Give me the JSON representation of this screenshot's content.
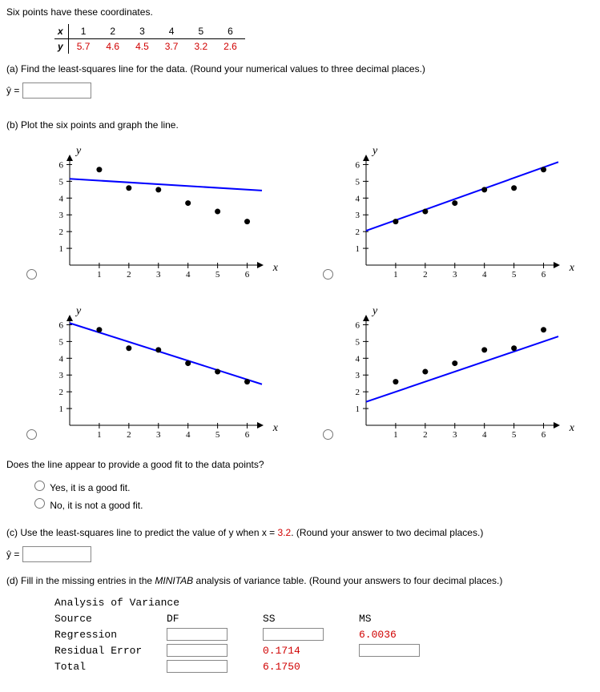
{
  "intro": "Six points have these coordinates.",
  "table": {
    "x_label": "x",
    "y_label": "y",
    "x": [
      "1",
      "2",
      "3",
      "4",
      "5",
      "6"
    ],
    "y": [
      "5.7",
      "4.6",
      "4.5",
      "3.7",
      "3.2",
      "2.6"
    ]
  },
  "partA": {
    "prompt": "(a) Find the least-squares line for the data. (Round your numerical values to three decimal places.)",
    "yhat": "ŷ ="
  },
  "partB": {
    "prompt": "(b) Plot the six points and graph the line.",
    "axis_y": "y",
    "axis_x": "x",
    "xlim": [
      0,
      6.5
    ],
    "ylim": [
      0,
      6.5
    ],
    "xticks": [
      1,
      2,
      3,
      4,
      5,
      6
    ],
    "yticks": [
      1,
      2,
      3,
      4,
      5,
      6
    ],
    "point_color": "#000000",
    "line_color": "#0000ff",
    "line_width": 2,
    "point_radius": 3.5,
    "charts": [
      {
        "points": [
          [
            1,
            5.7
          ],
          [
            2,
            4.6
          ],
          [
            3,
            4.5
          ],
          [
            4,
            3.7
          ],
          [
            5,
            3.2
          ],
          [
            6,
            2.6
          ]
        ],
        "line": [
          [
            0,
            5.15
          ],
          [
            6.5,
            4.45
          ]
        ]
      },
      {
        "points": [
          [
            1,
            2.6
          ],
          [
            2,
            3.2
          ],
          [
            3,
            3.7
          ],
          [
            4,
            4.5
          ],
          [
            5,
            4.6
          ],
          [
            6,
            5.7
          ]
        ],
        "line": [
          [
            0,
            2.05
          ],
          [
            6.5,
            6.15
          ]
        ]
      },
      {
        "points": [
          [
            1,
            5.7
          ],
          [
            2,
            4.6
          ],
          [
            3,
            4.5
          ],
          [
            4,
            3.7
          ],
          [
            5,
            3.2
          ],
          [
            6,
            2.6
          ]
        ],
        "line": [
          [
            0,
            6.1
          ],
          [
            6.5,
            2.45
          ]
        ]
      },
      {
        "points": [
          [
            1,
            2.6
          ],
          [
            2,
            3.2
          ],
          [
            3,
            3.7
          ],
          [
            4,
            4.5
          ],
          [
            5,
            4.6
          ],
          [
            6,
            5.7
          ]
        ],
        "line": [
          [
            0,
            1.4
          ],
          [
            6.5,
            5.3
          ]
        ]
      }
    ],
    "goodfit_q": "Does the line appear to provide a good fit to the data points?",
    "fit_yes": "Yes, it is a good fit.",
    "fit_no": "No, it is not a good fit."
  },
  "partC": {
    "prompt_pre": "(c) Use the least-squares line to predict the value of y when x = ",
    "xval": "3.2",
    "prompt_post": ".  (Round your answer to two decimal places.)",
    "yhat": "ŷ ="
  },
  "partD": {
    "prompt": "(d) Fill in the missing entries in the ",
    "minitab": "MINITAB",
    "prompt2": " analysis of variance table. (Round your answers to four decimal places.)",
    "title": "Analysis of Variance",
    "headers": {
      "source": "Source",
      "df": "DF",
      "ss": "SS",
      "ms": "MS"
    },
    "rows": {
      "regression": {
        "label": "Regression",
        "df": "",
        "ss": "",
        "ms": "6.0036"
      },
      "residual": {
        "label": "Residual Error",
        "df": "",
        "ss": "0.1714",
        "ms": ""
      },
      "total": {
        "label": "Total",
        "df": "",
        "ss": "6.1750",
        "ms": ""
      }
    }
  },
  "colors": {
    "red": "#d00000",
    "blue": "#0000ff"
  }
}
